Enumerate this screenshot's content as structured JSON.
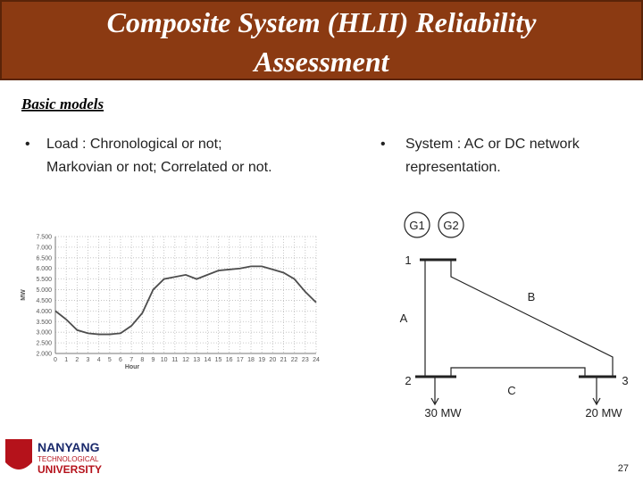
{
  "header": {
    "title_line1": "Composite System (HLII) Reliability",
    "title_line2": "Assessment"
  },
  "subtitle": "Basic models",
  "bullets": [
    {
      "line1": "Load : Chronological or not;",
      "line2": "Markovian or not; Correlated or not."
    },
    {
      "line1": "System : AC or DC network",
      "line2": "representation."
    }
  ],
  "load_chart": {
    "type": "line",
    "ylabel": "MW",
    "xlabel": "Hour",
    "color": "#4d4d4d",
    "grid": true,
    "x": [
      0,
      1,
      2,
      3,
      4,
      5,
      6,
      7,
      8,
      9,
      10,
      11,
      12,
      13,
      14,
      15,
      16,
      17,
      18,
      19,
      20,
      21,
      22,
      23,
      24
    ],
    "values": [
      4.0,
      3.6,
      3.1,
      2.95,
      2.9,
      2.9,
      2.95,
      3.3,
      3.9,
      5.0,
      5.5,
      5.6,
      5.7,
      5.5,
      5.7,
      5.9,
      5.95,
      6.0,
      6.1,
      6.1,
      5.95,
      5.8,
      5.5,
      4.9,
      4.4
    ],
    "xlim": [
      0,
      24
    ],
    "xticks": [
      0,
      1,
      2,
      3,
      4,
      5,
      6,
      7,
      8,
      9,
      10,
      11,
      12,
      13,
      14,
      15,
      16,
      17,
      18,
      19,
      20,
      21,
      22,
      23,
      24
    ],
    "ylim": [
      2,
      7.5
    ],
    "yticks": [
      {
        "value": 2,
        "label": "2.000"
      },
      {
        "value": 2.5,
        "label": "2.500"
      },
      {
        "value": 3,
        "label": "3.000"
      },
      {
        "value": 3.5,
        "label": "3.500"
      },
      {
        "value": 4,
        "label": "4.000"
      },
      {
        "value": 4.5,
        "label": "4.500"
      },
      {
        "value": 5,
        "label": "5.000"
      },
      {
        "value": 5.5,
        "label": "5.500"
      },
      {
        "value": 6,
        "label": "6.000"
      },
      {
        "value": 6.5,
        "label": "6.500"
      },
      {
        "value": 7,
        "label": "7.000"
      },
      {
        "value": 7.5,
        "label": "7.500"
      }
    ]
  },
  "network": {
    "generators": [
      "G1",
      "G2"
    ],
    "buses": [
      "1",
      "2",
      "3"
    ],
    "lines": [
      "A",
      "B",
      "C"
    ],
    "loads": [
      "30 MW",
      "20 MW"
    ]
  },
  "logo": {
    "line1": "NANYANG",
    "line2": "TECHNOLOGICAL",
    "line3": "UNIVERSITY"
  },
  "page_number": "27"
}
